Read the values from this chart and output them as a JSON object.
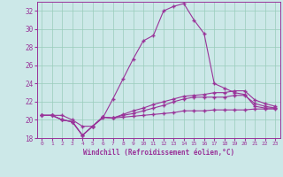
{
  "xlabel": "Windchill (Refroidissement éolien,°C)",
  "background_color": "#cce8e8",
  "grid_color": "#99ccbb",
  "line_color": "#993399",
  "xmin": 0,
  "xmax": 23,
  "ymin": 18,
  "ymax": 33,
  "yticks": [
    18,
    20,
    22,
    24,
    26,
    28,
    30,
    32
  ],
  "line1_x": [
    0,
    1,
    2,
    3,
    4,
    5,
    6,
    7,
    8,
    9,
    10,
    11,
    12,
    13,
    14,
    15,
    16,
    17,
    18,
    19,
    20,
    21,
    22,
    23
  ],
  "line1_y": [
    20.5,
    20.5,
    20.5,
    20.0,
    19.3,
    19.3,
    20.2,
    22.3,
    24.5,
    26.7,
    28.7,
    29.3,
    32.0,
    32.5,
    32.8,
    31.0,
    29.5,
    24.0,
    23.5,
    23.0,
    22.8,
    21.5,
    21.3,
    21.3
  ],
  "line2_x": [
    0,
    1,
    2,
    3,
    4,
    5,
    6,
    7,
    8,
    9,
    10,
    11,
    12,
    13,
    14,
    15,
    16,
    17,
    18,
    19,
    20,
    21,
    22,
    23
  ],
  "line2_y": [
    20.5,
    20.5,
    20.0,
    19.8,
    18.3,
    19.3,
    20.3,
    20.2,
    20.3,
    20.4,
    20.5,
    20.6,
    20.7,
    20.8,
    21.0,
    21.0,
    21.0,
    21.1,
    21.1,
    21.1,
    21.1,
    21.2,
    21.2,
    21.2
  ],
  "line3_x": [
    0,
    1,
    2,
    3,
    4,
    5,
    6,
    7,
    8,
    9,
    10,
    11,
    12,
    13,
    14,
    15,
    16,
    17,
    18,
    19,
    20,
    21,
    22,
    23
  ],
  "line3_y": [
    20.5,
    20.5,
    20.0,
    19.8,
    18.3,
    19.3,
    20.3,
    20.2,
    20.6,
    21.0,
    21.3,
    21.7,
    22.0,
    22.3,
    22.6,
    22.7,
    22.8,
    23.0,
    23.0,
    23.2,
    23.2,
    22.2,
    21.8,
    21.5
  ],
  "line4_x": [
    0,
    1,
    2,
    3,
    4,
    5,
    6,
    7,
    8,
    9,
    10,
    11,
    12,
    13,
    14,
    15,
    16,
    17,
    18,
    19,
    20,
    21,
    22,
    23
  ],
  "line4_y": [
    20.5,
    20.5,
    20.0,
    19.8,
    18.3,
    19.3,
    20.3,
    20.2,
    20.5,
    20.7,
    21.0,
    21.3,
    21.6,
    22.0,
    22.3,
    22.5,
    22.5,
    22.5,
    22.5,
    22.7,
    22.7,
    21.8,
    21.5,
    21.3
  ]
}
